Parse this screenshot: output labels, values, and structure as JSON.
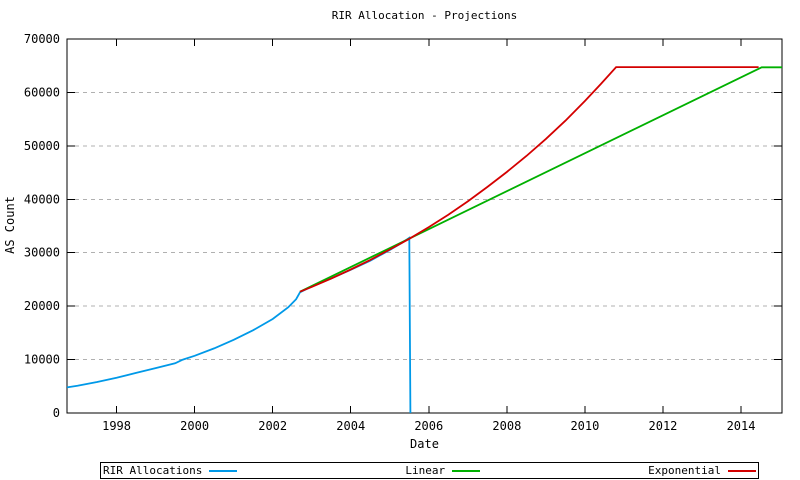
{
  "chart_data": {
    "type": "line",
    "title": "RIR Allocation - Projections",
    "xlabel": "Date",
    "ylabel": "AS Count",
    "xlim": [
      1996.73,
      2015.05
    ],
    "ylim": [
      0,
      70000
    ],
    "xticks": [
      1998,
      2000,
      2002,
      2004,
      2006,
      2008,
      2010,
      2012,
      2014
    ],
    "yticks": [
      0,
      10000,
      20000,
      30000,
      40000,
      50000,
      60000,
      70000
    ],
    "grid": "horizontal-dashed",
    "grid_color": "#b0b0b0",
    "axis_color": "#000000",
    "legend_position": "bottom",
    "series": [
      {
        "name": "RIR Allocations",
        "color": "#0099e8",
        "points": [
          [
            1996.73,
            4800
          ],
          [
            1997.0,
            5100
          ],
          [
            1997.5,
            5800
          ],
          [
            1998.0,
            6600
          ],
          [
            1998.5,
            7500
          ],
          [
            1999.0,
            8400
          ],
          [
            1999.5,
            9300
          ],
          [
            1999.7,
            10000
          ],
          [
            2000.0,
            10700
          ],
          [
            2000.5,
            12100
          ],
          [
            2001.0,
            13700
          ],
          [
            2001.5,
            15500
          ],
          [
            2002.0,
            17600
          ],
          [
            2002.4,
            19800
          ],
          [
            2002.6,
            21300
          ],
          [
            2002.7,
            22600
          ],
          [
            2003.0,
            23700
          ],
          [
            2003.5,
            25200
          ],
          [
            2004.0,
            26800
          ],
          [
            2004.5,
            28500
          ],
          [
            2005.0,
            30500
          ],
          [
            2005.3,
            31800
          ],
          [
            2005.5,
            32800
          ],
          [
            2005.53,
            0
          ]
        ]
      },
      {
        "name": "Linear",
        "color": "#00b000",
        "points": [
          [
            2002.7,
            22700
          ],
          [
            2014.53,
            64700
          ],
          [
            2015.05,
            64700
          ]
        ]
      },
      {
        "name": "Exponential",
        "color": "#d40000",
        "points": [
          [
            2002.7,
            22700
          ],
          [
            2003.0,
            23600
          ],
          [
            2003.5,
            25150
          ],
          [
            2004.0,
            26850
          ],
          [
            2004.5,
            28650
          ],
          [
            2005.0,
            30600
          ],
          [
            2005.5,
            32600
          ],
          [
            2006.0,
            34800
          ],
          [
            2006.5,
            37100
          ],
          [
            2007.0,
            39600
          ],
          [
            2007.5,
            42300
          ],
          [
            2008.0,
            45100
          ],
          [
            2008.5,
            48100
          ],
          [
            2009.0,
            51300
          ],
          [
            2009.5,
            54700
          ],
          [
            2010.0,
            58400
          ],
          [
            2010.4,
            61500
          ],
          [
            2010.8,
            64750
          ],
          [
            2014.45,
            64750
          ]
        ]
      }
    ]
  }
}
